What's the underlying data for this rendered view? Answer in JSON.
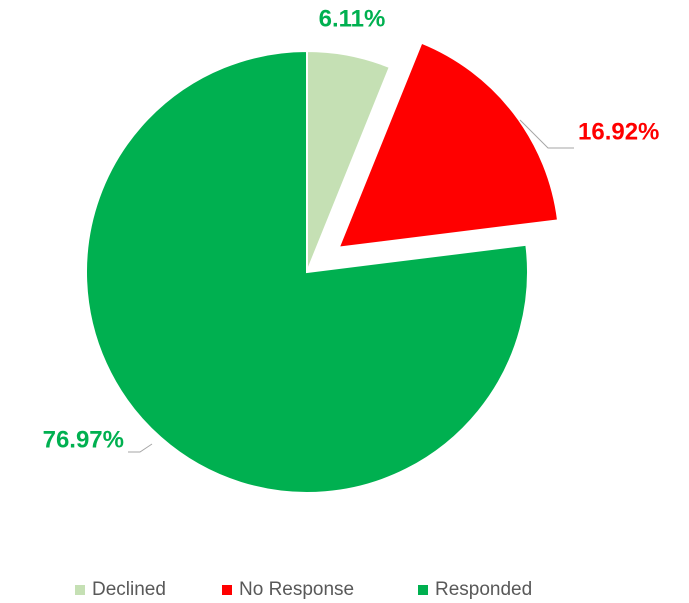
{
  "chart_data": {
    "type": "pie",
    "categories": [
      "Declined",
      "No Response",
      "Responded"
    ],
    "values": [
      6.11,
      16.92,
      76.97
    ],
    "value_labels": [
      "6.11%",
      "16.92%",
      "76.97%"
    ],
    "colors": [
      "#c5e0b4",
      "#ff0000",
      "#00b050"
    ],
    "label_colors": [
      "#00b050",
      "#ff0000",
      "#00b050"
    ],
    "exploded": [
      false,
      true,
      false
    ],
    "legend": "bottom"
  }
}
